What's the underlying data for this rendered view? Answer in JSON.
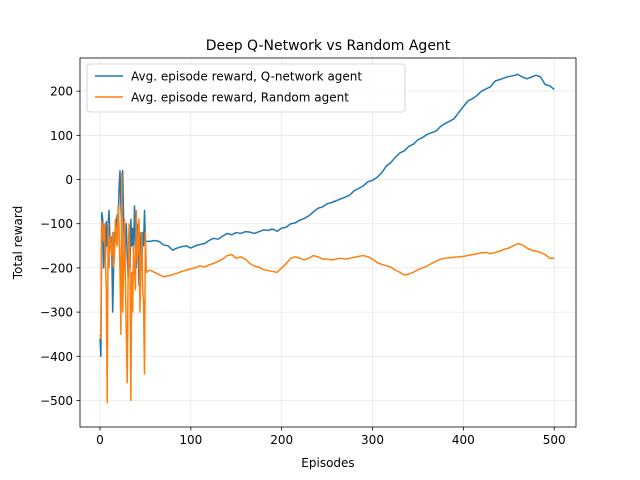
{
  "chart_data": {
    "type": "line",
    "title": "Deep Q-Network vs Random Agent",
    "xlabel": "Episodes",
    "ylabel": "Total reward",
    "xlim": [
      -22,
      524
    ],
    "ylim": [
      -560,
      275
    ],
    "xticks": [
      0,
      100,
      200,
      300,
      400,
      500
    ],
    "yticks": [
      -500,
      -400,
      -300,
      -200,
      -100,
      0,
      100,
      200
    ],
    "grid": true,
    "legend_position": "top-left",
    "series": [
      {
        "name": "Avg. episode reward, Q-network agent",
        "color": "#1f77b4",
        "points": [
          [
            0,
            -360
          ],
          [
            1,
            -400
          ],
          [
            2,
            -75
          ],
          [
            3,
            -90
          ],
          [
            4,
            -200
          ],
          [
            5,
            -110
          ],
          [
            6,
            -180
          ],
          [
            7,
            -95
          ],
          [
            8,
            -150
          ],
          [
            9,
            -100
          ],
          [
            10,
            -70
          ],
          [
            11,
            -140
          ],
          [
            12,
            -130
          ],
          [
            13,
            -160
          ],
          [
            14,
            -300
          ],
          [
            15,
            -200
          ],
          [
            16,
            -120
          ],
          [
            17,
            -140
          ],
          [
            18,
            -100
          ],
          [
            19,
            -80
          ],
          [
            20,
            -110
          ],
          [
            21,
            -20
          ],
          [
            22,
            20
          ],
          [
            23,
            -60
          ],
          [
            24,
            -110
          ],
          [
            25,
            20
          ],
          [
            26,
            -90
          ],
          [
            27,
            -200
          ],
          [
            28,
            -140
          ],
          [
            29,
            -100
          ],
          [
            30,
            -180
          ],
          [
            31,
            -220
          ],
          [
            32,
            -120
          ],
          [
            33,
            -200
          ],
          [
            34,
            -90
          ],
          [
            35,
            -150
          ],
          [
            36,
            -110
          ],
          [
            37,
            -170
          ],
          [
            38,
            -60
          ],
          [
            39,
            -130
          ],
          [
            40,
            -200
          ],
          [
            41,
            -100
          ],
          [
            42,
            -150
          ],
          [
            43,
            -240
          ],
          [
            44,
            -120
          ],
          [
            45,
            -160
          ],
          [
            46,
            -200
          ],
          [
            47,
            -120
          ],
          [
            48,
            -150
          ],
          [
            49,
            -70
          ],
          [
            50,
            -140
          ],
          [
            55,
            -140
          ],
          [
            60,
            -138
          ],
          [
            65,
            -140
          ],
          [
            70,
            -148
          ],
          [
            75,
            -150
          ],
          [
            80,
            -160
          ],
          [
            85,
            -155
          ],
          [
            90,
            -152
          ],
          [
            95,
            -150
          ],
          [
            100,
            -155
          ],
          [
            105,
            -150
          ],
          [
            110,
            -147
          ],
          [
            115,
            -145
          ],
          [
            120,
            -138
          ],
          [
            125,
            -133
          ],
          [
            130,
            -135
          ],
          [
            135,
            -128
          ],
          [
            140,
            -122
          ],
          [
            145,
            -125
          ],
          [
            150,
            -120
          ],
          [
            155,
            -122
          ],
          [
            160,
            -118
          ],
          [
            165,
            -119
          ],
          [
            170,
            -122
          ],
          [
            175,
            -118
          ],
          [
            180,
            -114
          ],
          [
            185,
            -115
          ],
          [
            190,
            -112
          ],
          [
            195,
            -117
          ],
          [
            200,
            -110
          ],
          [
            205,
            -108
          ],
          [
            210,
            -100
          ],
          [
            215,
            -98
          ],
          [
            220,
            -92
          ],
          [
            225,
            -88
          ],
          [
            230,
            -82
          ],
          [
            235,
            -73
          ],
          [
            240,
            -65
          ],
          [
            245,
            -62
          ],
          [
            250,
            -55
          ],
          [
            255,
            -52
          ],
          [
            260,
            -48
          ],
          [
            265,
            -44
          ],
          [
            270,
            -40
          ],
          [
            275,
            -35
          ],
          [
            280,
            -25
          ],
          [
            285,
            -20
          ],
          [
            290,
            -14
          ],
          [
            295,
            -5
          ],
          [
            300,
            -2
          ],
          [
            305,
            5
          ],
          [
            310,
            15
          ],
          [
            315,
            30
          ],
          [
            320,
            38
          ],
          [
            325,
            50
          ],
          [
            330,
            60
          ],
          [
            335,
            65
          ],
          [
            340,
            75
          ],
          [
            345,
            80
          ],
          [
            350,
            90
          ],
          [
            355,
            95
          ],
          [
            360,
            102
          ],
          [
            365,
            106
          ],
          [
            370,
            110
          ],
          [
            375,
            120
          ],
          [
            380,
            127
          ],
          [
            385,
            132
          ],
          [
            390,
            138
          ],
          [
            395,
            152
          ],
          [
            400,
            165
          ],
          [
            405,
            178
          ],
          [
            410,
            183
          ],
          [
            415,
            190
          ],
          [
            420,
            200
          ],
          [
            425,
            205
          ],
          [
            430,
            210
          ],
          [
            435,
            223
          ],
          [
            440,
            226
          ],
          [
            445,
            230
          ],
          [
            450,
            233
          ],
          [
            455,
            235
          ],
          [
            460,
            238
          ],
          [
            465,
            232
          ],
          [
            470,
            228
          ],
          [
            475,
            232
          ],
          [
            480,
            236
          ],
          [
            485,
            232
          ],
          [
            490,
            215
          ],
          [
            495,
            212
          ],
          [
            500,
            204
          ]
        ]
      },
      {
        "name": "Avg. episode reward, Random agent",
        "color": "#ff7f0e",
        "points": [
          [
            0,
            -350
          ],
          [
            1,
            -360
          ],
          [
            2,
            -95
          ],
          [
            3,
            -110
          ],
          [
            4,
            -140
          ],
          [
            5,
            -100
          ],
          [
            6,
            -190
          ],
          [
            7,
            -250
          ],
          [
            8,
            -505
          ],
          [
            9,
            -100
          ],
          [
            10,
            -200
          ],
          [
            11,
            -130
          ],
          [
            12,
            -150
          ],
          [
            13,
            -170
          ],
          [
            14,
            -120
          ],
          [
            15,
            -200
          ],
          [
            16,
            -170
          ],
          [
            17,
            -90
          ],
          [
            18,
            -140
          ],
          [
            19,
            -150
          ],
          [
            20,
            -60
          ],
          [
            21,
            -110
          ],
          [
            22,
            -200
          ],
          [
            23,
            -350
          ],
          [
            24,
            15
          ],
          [
            25,
            -300
          ],
          [
            26,
            -200
          ],
          [
            27,
            -90
          ],
          [
            28,
            -230
          ],
          [
            29,
            -350
          ],
          [
            30,
            -460
          ],
          [
            31,
            -200
          ],
          [
            32,
            -100
          ],
          [
            33,
            -200
          ],
          [
            34,
            -500
          ],
          [
            35,
            -210
          ],
          [
            36,
            -300
          ],
          [
            37,
            -150
          ],
          [
            38,
            -200
          ],
          [
            39,
            -250
          ],
          [
            40,
            -70
          ],
          [
            41,
            -180
          ],
          [
            42,
            -150
          ],
          [
            43,
            -90
          ],
          [
            44,
            -300
          ],
          [
            45,
            -200
          ],
          [
            46,
            -120
          ],
          [
            47,
            -250
          ],
          [
            48,
            -280
          ],
          [
            49,
            -440
          ],
          [
            50,
            -120
          ],
          [
            51,
            -210
          ],
          [
            55,
            -205
          ],
          [
            60,
            -210
          ],
          [
            65,
            -215
          ],
          [
            70,
            -220
          ],
          [
            75,
            -218
          ],
          [
            80,
            -215
          ],
          [
            85,
            -212
          ],
          [
            90,
            -208
          ],
          [
            95,
            -205
          ],
          [
            100,
            -202
          ],
          [
            105,
            -200
          ],
          [
            110,
            -195
          ],
          [
            115,
            -198
          ],
          [
            120,
            -193
          ],
          [
            125,
            -190
          ],
          [
            130,
            -185
          ],
          [
            135,
            -180
          ],
          [
            140,
            -172
          ],
          [
            145,
            -170
          ],
          [
            150,
            -178
          ],
          [
            155,
            -175
          ],
          [
            160,
            -180
          ],
          [
            165,
            -190
          ],
          [
            170,
            -196
          ],
          [
            175,
            -198
          ],
          [
            180,
            -204
          ],
          [
            185,
            -206
          ],
          [
            190,
            -208
          ],
          [
            195,
            -210
          ],
          [
            200,
            -200
          ],
          [
            205,
            -190
          ],
          [
            210,
            -178
          ],
          [
            215,
            -175
          ],
          [
            220,
            -178
          ],
          [
            225,
            -182
          ],
          [
            230,
            -178
          ],
          [
            235,
            -172
          ],
          [
            240,
            -175
          ],
          [
            245,
            -180
          ],
          [
            250,
            -180
          ],
          [
            255,
            -182
          ],
          [
            260,
            -180
          ],
          [
            265,
            -178
          ],
          [
            270,
            -180
          ],
          [
            275,
            -178
          ],
          [
            280,
            -176
          ],
          [
            285,
            -174
          ],
          [
            290,
            -172
          ],
          [
            295,
            -175
          ],
          [
            300,
            -180
          ],
          [
            305,
            -188
          ],
          [
            310,
            -192
          ],
          [
            315,
            -195
          ],
          [
            320,
            -198
          ],
          [
            325,
            -205
          ],
          [
            330,
            -210
          ],
          [
            335,
            -216
          ],
          [
            340,
            -214
          ],
          [
            345,
            -210
          ],
          [
            350,
            -204
          ],
          [
            355,
            -200
          ],
          [
            360,
            -196
          ],
          [
            365,
            -190
          ],
          [
            370,
            -185
          ],
          [
            375,
            -180
          ],
          [
            380,
            -178
          ],
          [
            385,
            -177
          ],
          [
            390,
            -176
          ],
          [
            395,
            -175
          ],
          [
            400,
            -174
          ],
          [
            405,
            -172
          ],
          [
            410,
            -170
          ],
          [
            415,
            -168
          ],
          [
            420,
            -166
          ],
          [
            425,
            -165
          ],
          [
            430,
            -168
          ],
          [
            435,
            -165
          ],
          [
            440,
            -162
          ],
          [
            445,
            -158
          ],
          [
            450,
            -155
          ],
          [
            455,
            -150
          ],
          [
            460,
            -145
          ],
          [
            465,
            -148
          ],
          [
            470,
            -155
          ],
          [
            475,
            -160
          ],
          [
            480,
            -162
          ],
          [
            485,
            -165
          ],
          [
            490,
            -170
          ],
          [
            495,
            -178
          ],
          [
            500,
            -178
          ]
        ]
      }
    ]
  }
}
